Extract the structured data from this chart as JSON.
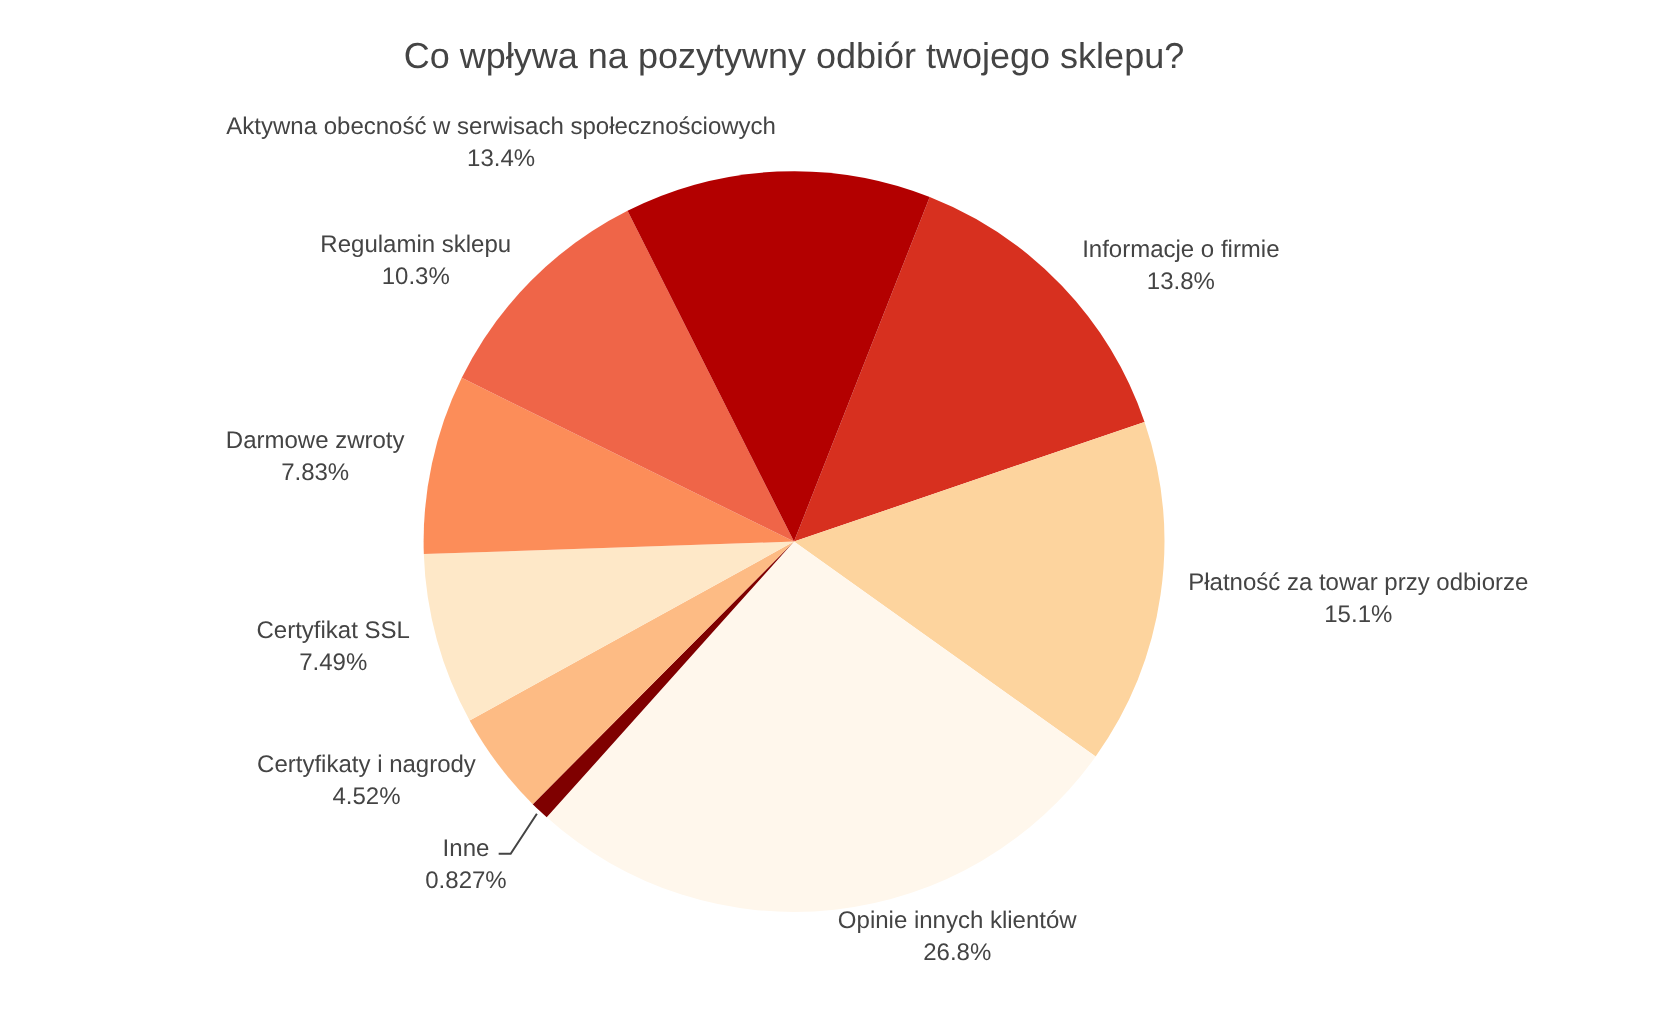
{
  "chart_data": {
    "type": "pie",
    "title": "Co wpływa na pozytywny odbiór twojego sklepu?",
    "categories": [
      "Informacje o firmie",
      "Płatność za towar przy odbiorze",
      "Opinie innych klientów",
      "Inne",
      "Certyfikaty i nagrody",
      "Certyfikat SSL",
      "Darmowe zwroty",
      "Regulamin sklepu",
      "Aktywna obecność w serwisach społecznościowych"
    ],
    "values": [
      13.8,
      15.1,
      26.8,
      0.827,
      4.52,
      7.49,
      7.83,
      10.3,
      13.4
    ],
    "value_labels": [
      "13.8%",
      "15.1%",
      "26.8%",
      "0.827%",
      "4.52%",
      "7.49%",
      "7.83%",
      "10.3%",
      "13.4%"
    ],
    "colors": [
      "#d7301f",
      "#fdd49e",
      "#fff7ec",
      "#7f0000",
      "#fdbb84",
      "#fee8c8",
      "#fc8d59",
      "#ef6548",
      "#b30000"
    ],
    "legend": false
  }
}
